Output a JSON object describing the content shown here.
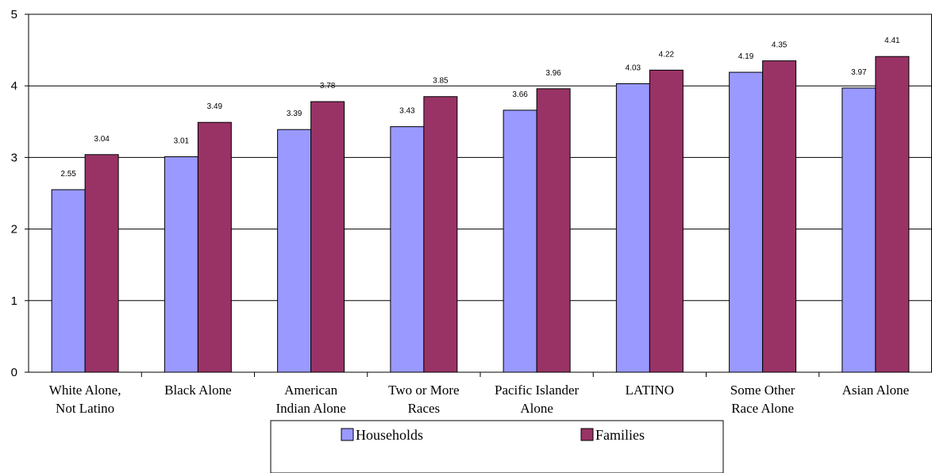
{
  "chart_data": {
    "type": "bar",
    "categories": [
      [
        "White Alone,",
        "Not Latino"
      ],
      [
        "Black Alone"
      ],
      [
        "American",
        "Indian Alone"
      ],
      [
        "Two or More",
        "Races"
      ],
      [
        "Pacific Islander",
        "Alone"
      ],
      [
        "LATINO"
      ],
      [
        "Some Other",
        "Race Alone"
      ],
      [
        "Asian Alone"
      ]
    ],
    "series": [
      {
        "name": "Households",
        "color": "#9999ff",
        "values": [
          2.55,
          3.01,
          3.39,
          3.43,
          3.66,
          4.03,
          4.19,
          3.97
        ],
        "labels": [
          "2.55",
          "3.01",
          "3.39",
          "3.43",
          "3.66",
          "4.03",
          "4.19",
          "3.97"
        ]
      },
      {
        "name": "Families",
        "color": "#993366",
        "values": [
          3.04,
          3.49,
          3.78,
          3.85,
          3.96,
          4.22,
          4.35,
          4.41
        ],
        "labels": [
          "3.04",
          "3.49",
          "3.78",
          "3.85",
          "3.96",
          "4.22",
          "4.35",
          "4.41"
        ]
      }
    ],
    "ylim": [
      0,
      5
    ],
    "yticks": [
      "0",
      "1",
      "2",
      "3",
      "4",
      "5"
    ],
    "grid": true,
    "legend": "bottom"
  }
}
